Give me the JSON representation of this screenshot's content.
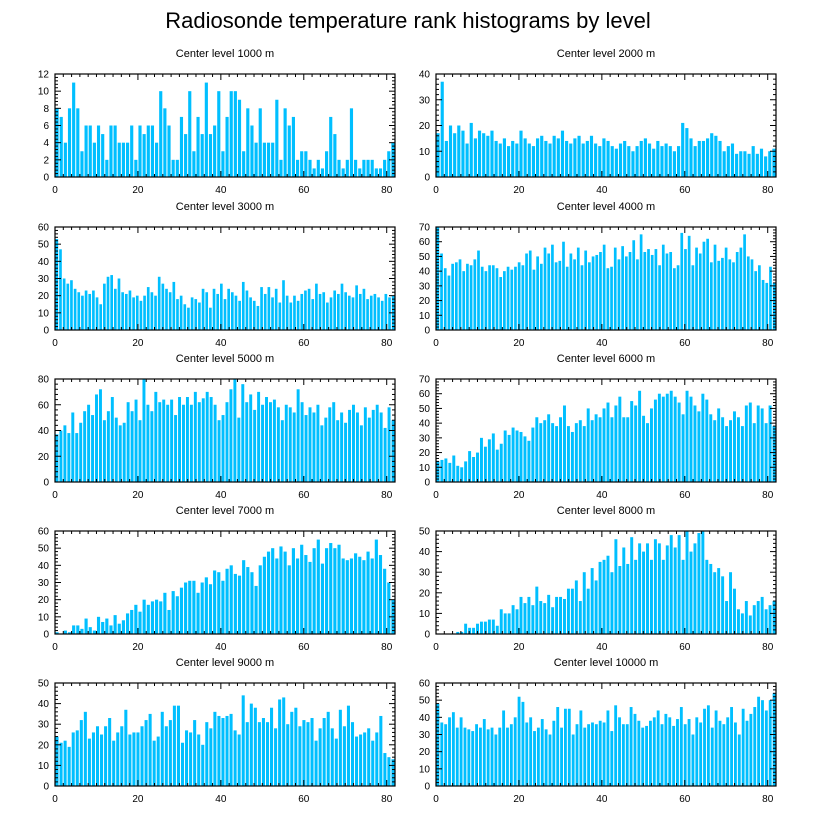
{
  "title": "Radiosonde temperature rank histograms by level",
  "colors": {
    "bar": "#00bfff",
    "axis": "#000000"
  },
  "chart_data": [
    {
      "type": "bar",
      "title": "Center level 1000 m",
      "xticks": [
        0,
        20,
        40,
        60,
        80
      ],
      "xlim": [
        0,
        82
      ],
      "ylim": [
        0,
        12
      ],
      "yticks": [
        0,
        2,
        4,
        6,
        8,
        10,
        12
      ],
      "values": [
        8,
        7,
        4,
        8,
        11,
        8,
        3,
        6,
        6,
        4,
        6,
        5,
        2,
        6,
        6,
        4,
        4,
        4,
        6,
        2,
        6,
        5,
        6,
        6,
        4,
        10,
        8,
        6,
        2,
        2,
        7,
        5,
        10,
        3,
        7,
        5,
        11,
        5,
        6,
        10,
        3,
        7,
        10,
        10,
        9,
        3,
        8,
        6,
        4,
        8,
        4,
        4,
        4,
        9,
        2,
        8,
        6,
        7,
        2,
        3,
        3,
        2,
        1,
        2,
        1,
        3,
        7,
        5,
        2,
        1,
        2,
        8,
        2,
        1,
        2,
        2,
        2,
        1,
        1,
        2,
        3,
        4
      ]
    },
    {
      "type": "bar",
      "title": "Center level 2000 m",
      "xticks": [
        0,
        20,
        40,
        60,
        80
      ],
      "xlim": [
        0,
        82
      ],
      "ylim": [
        0,
        40
      ],
      "yticks": [
        0,
        10,
        20,
        30,
        40
      ],
      "values": [
        17,
        37,
        14,
        20,
        17,
        20,
        18,
        13,
        21,
        15,
        18,
        17,
        16,
        18,
        14,
        13,
        15,
        12,
        14,
        13,
        18,
        15,
        13,
        12,
        15,
        16,
        14,
        13,
        16,
        15,
        18,
        14,
        13,
        15,
        16,
        13,
        14,
        16,
        13,
        12,
        15,
        14,
        12,
        11,
        13,
        14,
        12,
        10,
        12,
        14,
        15,
        13,
        11,
        14,
        12,
        13,
        12,
        10,
        12,
        21,
        19,
        15,
        12,
        14,
        14,
        15,
        17,
        16,
        14,
        10,
        12,
        13,
        9,
        10,
        10,
        9,
        12,
        9,
        11,
        8,
        10,
        11
      ]
    },
    {
      "type": "bar",
      "title": "Center level 3000 m",
      "xticks": [
        0,
        20,
        40,
        60,
        80
      ],
      "xlim": [
        0,
        82
      ],
      "ylim": [
        0,
        60
      ],
      "yticks": [
        0,
        10,
        20,
        30,
        40,
        50,
        60
      ],
      "values": [
        53,
        47,
        30,
        27,
        29,
        24,
        22,
        20,
        23,
        21,
        23,
        19,
        15,
        27,
        31,
        32,
        24,
        30,
        22,
        21,
        23,
        19,
        20,
        17,
        20,
        25,
        22,
        20,
        31,
        27,
        24,
        22,
        28,
        18,
        20,
        15,
        13,
        19,
        18,
        16,
        24,
        22,
        13,
        24,
        21,
        27,
        18,
        24,
        22,
        20,
        17,
        28,
        23,
        19,
        17,
        14,
        25,
        21,
        25,
        19,
        24,
        16,
        29,
        20,
        16,
        20,
        17,
        21,
        23,
        24,
        18,
        27,
        21,
        22,
        16,
        19,
        23,
        21,
        27,
        22,
        20,
        19,
        26,
        21,
        24,
        18,
        20,
        21,
        19,
        17,
        21,
        19,
        20
      ]
    },
    {
      "type": "bar",
      "title": "Center level 4000 m",
      "xticks": [
        0,
        20,
        40,
        60,
        80
      ],
      "xlim": [
        0,
        82
      ],
      "ylim": [
        0,
        70
      ],
      "yticks": [
        0,
        10,
        20,
        30,
        40,
        50,
        60,
        70
      ],
      "values": [
        70,
        52,
        42,
        37,
        45,
        46,
        48,
        40,
        45,
        44,
        48,
        54,
        43,
        40,
        44,
        44,
        42,
        36,
        40,
        43,
        41,
        43,
        46,
        44,
        52,
        54,
        41,
        50,
        45,
        56,
        52,
        58,
        46,
        47,
        60,
        43,
        52,
        48,
        56,
        44,
        54,
        46,
        50,
        51,
        53,
        58,
        42,
        43,
        56,
        48,
        57,
        50,
        53,
        61,
        48,
        65,
        53,
        55,
        51,
        55,
        44,
        58,
        52,
        53,
        42,
        44,
        66,
        55,
        64,
        44,
        56,
        52,
        60,
        62,
        46,
        58,
        47,
        49,
        56,
        48,
        46,
        53,
        56,
        65,
        50,
        48,
        40,
        44,
        34,
        32,
        43,
        32
      ]
    },
    {
      "type": "bar",
      "title": "Center level 5000 m",
      "xticks": [
        0,
        20,
        40,
        60,
        80
      ],
      "xlim": [
        0,
        82
      ],
      "ylim": [
        0,
        80
      ],
      "yticks": [
        0,
        20,
        40,
        60,
        80
      ],
      "values": [
        37,
        40,
        44,
        38,
        54,
        38,
        46,
        55,
        60,
        52,
        68,
        72,
        48,
        55,
        66,
        50,
        44,
        46,
        62,
        55,
        64,
        48,
        80,
        60,
        55,
        70,
        62,
        64,
        60,
        64,
        52,
        66,
        60,
        66,
        60,
        70,
        62,
        65,
        70,
        66,
        60,
        48,
        52,
        62,
        72,
        80,
        50,
        76,
        62,
        68,
        56,
        70,
        60,
        66,
        62,
        64,
        58,
        48,
        60,
        58,
        54,
        72,
        62,
        52,
        58,
        54,
        60,
        44,
        50,
        58,
        62,
        48,
        54,
        46,
        56,
        60,
        54,
        44,
        58,
        50,
        56,
        60,
        54,
        42,
        58,
        48
      ]
    },
    {
      "type": "bar",
      "title": "Center level 6000 m",
      "xticks": [
        0,
        20,
        40,
        60,
        80
      ],
      "xlim": [
        0,
        82
      ],
      "ylim": [
        0,
        70
      ],
      "yticks": [
        0,
        10,
        20,
        30,
        40,
        50,
        60,
        70
      ],
      "values": [
        14,
        15,
        16,
        13,
        18,
        11,
        10,
        14,
        21,
        17,
        20,
        30,
        24,
        29,
        33,
        22,
        26,
        35,
        32,
        37,
        35,
        34,
        31,
        28,
        37,
        44,
        40,
        42,
        46,
        40,
        38,
        44,
        52,
        38,
        34,
        40,
        42,
        38,
        50,
        42,
        46,
        44,
        50,
        54,
        44,
        52,
        58,
        44,
        44,
        55,
        52,
        62,
        45,
        40,
        50,
        56,
        60,
        58,
        60,
        62,
        58,
        54,
        46,
        62,
        58,
        52,
        48,
        60,
        56,
        46,
        42,
        50,
        44,
        38,
        42,
        48,
        44,
        38,
        52,
        54,
        40,
        52,
        50,
        40,
        52,
        38
      ]
    },
    {
      "type": "bar",
      "title": "Center level 7000 m",
      "xticks": [
        0,
        20,
        40,
        60,
        80
      ],
      "xlim": [
        0,
        82
      ],
      "ylim": [
        0,
        60
      ],
      "yticks": [
        0,
        10,
        20,
        30,
        40,
        50,
        60
      ],
      "values": [
        1,
        0,
        2,
        1,
        5,
        5,
        3,
        9,
        4,
        2,
        10,
        7,
        9,
        5,
        11,
        6,
        8,
        12,
        14,
        17,
        13,
        20,
        17,
        19,
        20,
        19,
        24,
        14,
        25,
        22,
        27,
        30,
        31,
        31,
        24,
        30,
        33,
        29,
        37,
        36,
        31,
        38,
        40,
        35,
        34,
        43,
        39,
        36,
        28,
        40,
        45,
        48,
        50,
        44,
        51,
        48,
        40,
        50,
        44,
        52,
        46,
        42,
        50,
        55,
        41,
        50,
        53,
        50,
        52,
        44,
        43,
        44,
        47,
        45,
        43,
        48,
        44,
        55,
        46,
        38,
        30,
        20
      ]
    },
    {
      "type": "bar",
      "title": "Center level 8000 m",
      "xticks": [
        0,
        20,
        40,
        60,
        80
      ],
      "xlim": [
        0,
        82
      ],
      "ylim": [
        0,
        50
      ],
      "yticks": [
        0,
        10,
        20,
        30,
        40,
        50
      ],
      "values": [
        0,
        0,
        0,
        0,
        0,
        1,
        1,
        5,
        3,
        3,
        5,
        6,
        6,
        7,
        7,
        4,
        12,
        10,
        10,
        14,
        12,
        18,
        15,
        18,
        14,
        23,
        16,
        15,
        19,
        13,
        18,
        18,
        17,
        22,
        22,
        26,
        16,
        30,
        22,
        32,
        26,
        35,
        36,
        38,
        30,
        46,
        33,
        42,
        34,
        47,
        36,
        44,
        40,
        44,
        36,
        46,
        44,
        36,
        43,
        48,
        42,
        48,
        36,
        52,
        40,
        44,
        49,
        50,
        36,
        34,
        30,
        32,
        28,
        16,
        30,
        22,
        12,
        10,
        16,
        9,
        14,
        16,
        18,
        12,
        14,
        16
      ]
    },
    {
      "type": "bar",
      "title": "Center level 9000 m",
      "xticks": [
        0,
        20,
        40,
        60,
        80
      ],
      "xlim": [
        0,
        82
      ],
      "ylim": [
        0,
        50
      ],
      "yticks": [
        0,
        10,
        20,
        30,
        40,
        50
      ],
      "values": [
        24,
        21,
        22,
        19,
        26,
        27,
        32,
        36,
        23,
        26,
        29,
        25,
        29,
        33,
        22,
        26,
        29,
        37,
        25,
        26,
        26,
        29,
        32,
        35,
        22,
        24,
        36,
        29,
        32,
        39,
        39,
        21,
        27,
        26,
        32,
        25,
        20,
        31,
        28,
        36,
        34,
        33,
        34,
        35,
        27,
        25,
        44,
        31,
        40,
        38,
        31,
        33,
        31,
        38,
        28,
        42,
        43,
        30,
        36,
        38,
        29,
        32,
        31,
        33,
        22,
        28,
        33,
        36,
        28,
        23,
        37,
        29,
        39,
        31,
        24,
        25,
        26,
        28,
        22,
        26,
        34,
        16,
        14,
        13
      ]
    },
    {
      "type": "bar",
      "title": "Center level 10000 m",
      "xticks": [
        0,
        20,
        40,
        60,
        80
      ],
      "xlim": [
        0,
        82
      ],
      "ylim": [
        0,
        60
      ],
      "yticks": [
        0,
        10,
        20,
        30,
        40,
        50,
        60
      ],
      "values": [
        48,
        37,
        36,
        40,
        43,
        34,
        40,
        34,
        33,
        32,
        36,
        34,
        39,
        33,
        34,
        30,
        34,
        44,
        34,
        36,
        40,
        52,
        49,
        37,
        40,
        32,
        34,
        39,
        33,
        30,
        38,
        46,
        34,
        45,
        45,
        30,
        36,
        44,
        34,
        36,
        37,
        36,
        38,
        37,
        44,
        32,
        47,
        40,
        36,
        36,
        46,
        42,
        38,
        34,
        35,
        38,
        40,
        44,
        36,
        42,
        40,
        35,
        39,
        46,
        36,
        39,
        30,
        40,
        37,
        45,
        47,
        34,
        44,
        38,
        36,
        40,
        46,
        37,
        30,
        45,
        38,
        42,
        46,
        52,
        50,
        44,
        50,
        54
      ]
    }
  ]
}
